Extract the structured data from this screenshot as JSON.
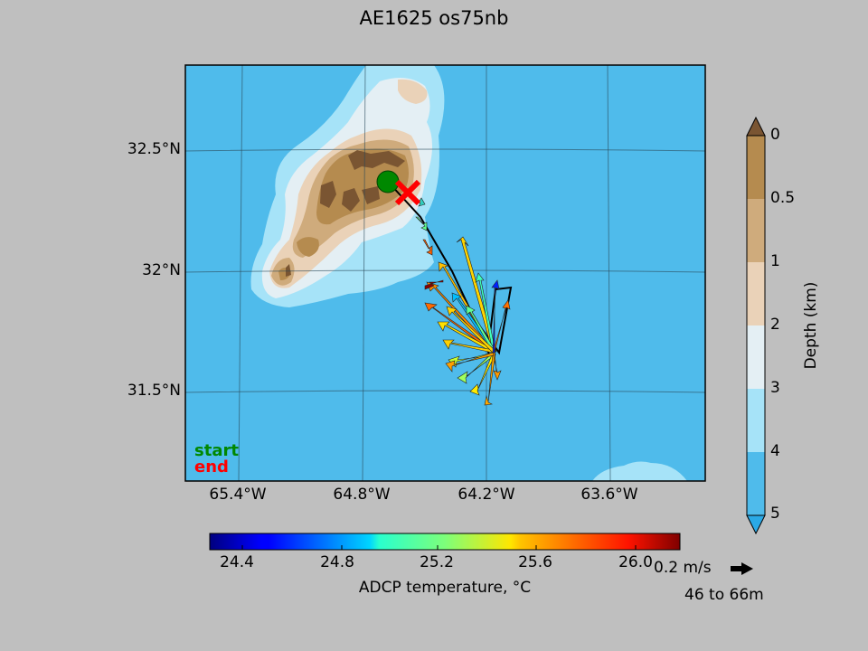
{
  "title": "AE1625 os75nb",
  "map": {
    "lat_labels": [
      "32.5°N",
      "32°N",
      "31.5°N"
    ],
    "lon_labels": [
      "65.4°W",
      "64.8°W",
      "64.2°W",
      "63.6°W"
    ],
    "legend_start": "start",
    "legend_end": "end",
    "colors": {
      "ocean_deep": "#4fbbeb",
      "ocean_mid": "#a6e3f8",
      "shelf": "#e4eff4",
      "shallow_1": "#ead2b8",
      "shallow_2": "#cfab7c",
      "shallow_3": "#b58b4f",
      "reef": "#7a5532",
      "start_marker": "#008800",
      "end_marker": "#ff0000"
    }
  },
  "depth_colorbar": {
    "label": "Depth (km)",
    "ticks": [
      "0",
      "0.5",
      "1",
      "2",
      "3",
      "4",
      "5"
    ]
  },
  "temp_colorbar": {
    "label": "ADCP temperature, °C",
    "ticks": [
      "24.4",
      "24.8",
      "25.2",
      "25.6",
      "26.0"
    ]
  },
  "scale": {
    "label": "0.2 m/s",
    "depth_range": "46 to 66m"
  }
}
